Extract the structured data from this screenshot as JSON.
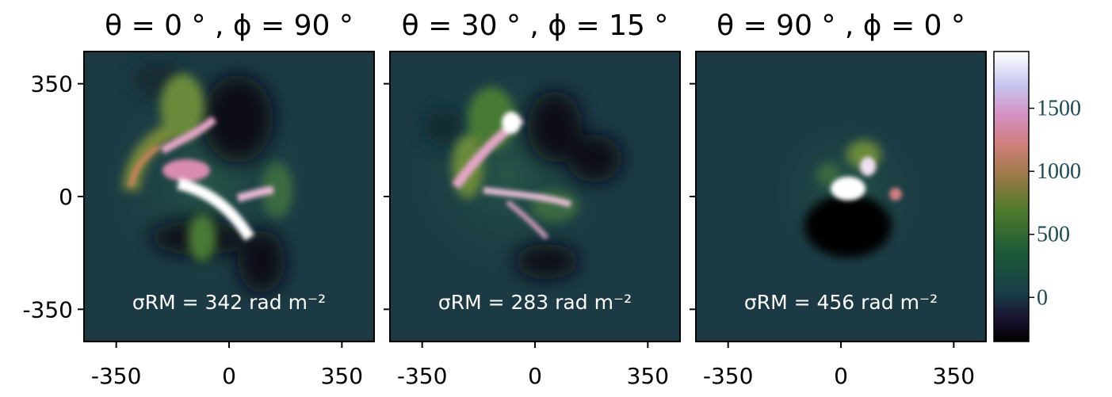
{
  "chart_data": {
    "type": "heatmap",
    "colormap": "cubehelix",
    "colors": {
      "background": "#1b3a44",
      "low": "#0b0410",
      "mid": "#2e7a3a",
      "high_pink": "#d98cb0",
      "peak": "#ffffff"
    },
    "xlim": [
      -450,
      450
    ],
    "ylim": [
      -450,
      450
    ],
    "x_ticks": [
      -350,
      0,
      350
    ],
    "x_tick_labels": [
      "-350",
      "0",
      "350"
    ],
    "y_ticks": [
      350,
      0,
      -350
    ],
    "y_tick_labels": [
      "350",
      "0",
      "-350"
    ],
    "panels": [
      {
        "theta": "θ = 0°",
        "phi": "ϕ = 90°",
        "title": "θ = 0 ° , ϕ = 90 °",
        "sigma_rm": "σRM = 342 rad m⁻²",
        "sigma_value": 342
      },
      {
        "theta": "θ = 30°",
        "phi": "ϕ = 15°",
        "title": "θ = 30 ° , ϕ = 15 °",
        "sigma_rm": "σRM = 283 rad m⁻²",
        "sigma_value": 283
      },
      {
        "theta": "θ = 90°",
        "phi": "ϕ = 0°",
        "title": "θ = 90 ° , ϕ = 0 °",
        "sigma_rm": "σRM = 456 rad m⁻²",
        "sigma_value": 456
      }
    ],
    "colorbar": {
      "range": [
        -350,
        1950
      ],
      "ticks": [
        0,
        500,
        1000,
        1500
      ],
      "tick_labels": [
        "0",
        "500",
        "1000",
        "1500"
      ]
    }
  }
}
